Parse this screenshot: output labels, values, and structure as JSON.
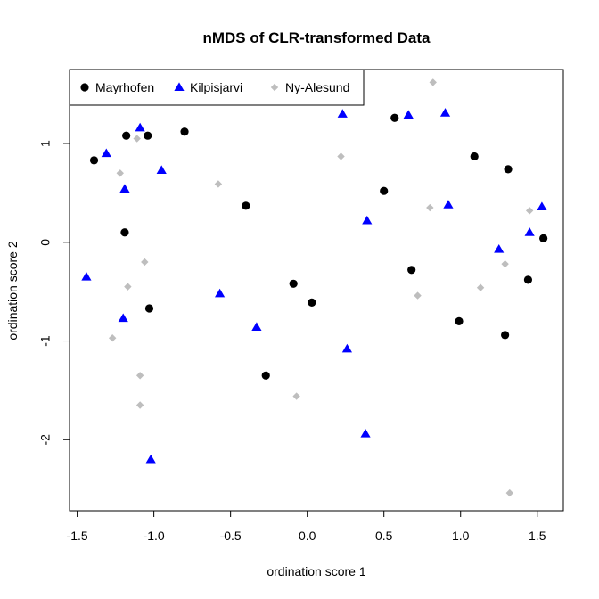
{
  "chart_data": {
    "type": "scatter",
    "title": "nMDS of CLR-transformed Data",
    "xlabel": "ordination score 1",
    "ylabel": "ordination score 2",
    "xlim": [
      -1.55,
      1.67
    ],
    "ylim": [
      -2.72,
      1.75
    ],
    "xticks": [
      -1.5,
      -1.0,
      -0.5,
      0.0,
      0.5,
      1.0,
      1.5
    ],
    "xtick_labels": [
      "-1.5",
      "-1.0",
      "-0.5",
      "0.0",
      "0.5",
      "1.0",
      "1.5"
    ],
    "yticks": [
      -2,
      -1,
      0,
      1
    ],
    "ytick_labels": [
      "-2",
      "-1",
      "0",
      "1"
    ],
    "grid": false,
    "legend_position": "top-left",
    "series": [
      {
        "name": "Mayrhofen",
        "marker": "circle",
        "color": "#000000",
        "points": [
          [
            -1.39,
            0.83
          ],
          [
            -1.18,
            1.08
          ],
          [
            -1.04,
            1.08
          ],
          [
            -0.8,
            1.12
          ],
          [
            -1.19,
            0.1
          ],
          [
            -1.03,
            -0.67
          ],
          [
            -0.4,
            0.37
          ],
          [
            -0.09,
            -0.42
          ],
          [
            0.03,
            -0.61
          ],
          [
            -0.27,
            -1.35
          ],
          [
            0.5,
            0.52
          ],
          [
            0.57,
            1.26
          ],
          [
            0.68,
            -0.28
          ],
          [
            0.99,
            -0.8
          ],
          [
            1.09,
            0.87
          ],
          [
            1.31,
            0.74
          ],
          [
            1.29,
            -0.94
          ],
          [
            1.44,
            -0.38
          ],
          [
            1.54,
            0.04
          ]
        ]
      },
      {
        "name": "Kilpisjarvi",
        "marker": "triangle",
        "color": "#0000ff",
        "points": [
          [
            -1.31,
            0.9
          ],
          [
            -1.09,
            1.16
          ],
          [
            -1.19,
            0.54
          ],
          [
            -0.95,
            0.73
          ],
          [
            -1.44,
            -0.35
          ],
          [
            -1.2,
            -0.77
          ],
          [
            -1.02,
            -2.2
          ],
          [
            -0.57,
            -0.52
          ],
          [
            -0.33,
            -0.86
          ],
          [
            0.23,
            1.3
          ],
          [
            0.26,
            -1.08
          ],
          [
            0.39,
            0.22
          ],
          [
            0.38,
            -1.94
          ],
          [
            0.66,
            1.29
          ],
          [
            0.9,
            1.31
          ],
          [
            0.92,
            0.38
          ],
          [
            1.25,
            -0.07
          ],
          [
            1.45,
            0.1
          ],
          [
            1.53,
            0.36
          ]
        ]
      },
      {
        "name": "Ny-Alesund",
        "marker": "diamond",
        "color": "#bebebe",
        "points": [
          [
            -1.22,
            0.7
          ],
          [
            -1.11,
            1.05
          ],
          [
            -1.06,
            -0.2
          ],
          [
            -1.17,
            -0.45
          ],
          [
            -1.27,
            -0.97
          ],
          [
            -1.09,
            -1.35
          ],
          [
            -1.09,
            -1.65
          ],
          [
            -0.58,
            0.59
          ],
          [
            -0.07,
            -1.56
          ],
          [
            0.22,
            0.87
          ],
          [
            0.72,
            -0.54
          ],
          [
            0.8,
            0.35
          ],
          [
            0.82,
            1.62
          ],
          [
            1.13,
            -0.46
          ],
          [
            1.29,
            -0.22
          ],
          [
            1.32,
            -2.54
          ],
          [
            1.45,
            0.32
          ]
        ]
      }
    ]
  }
}
